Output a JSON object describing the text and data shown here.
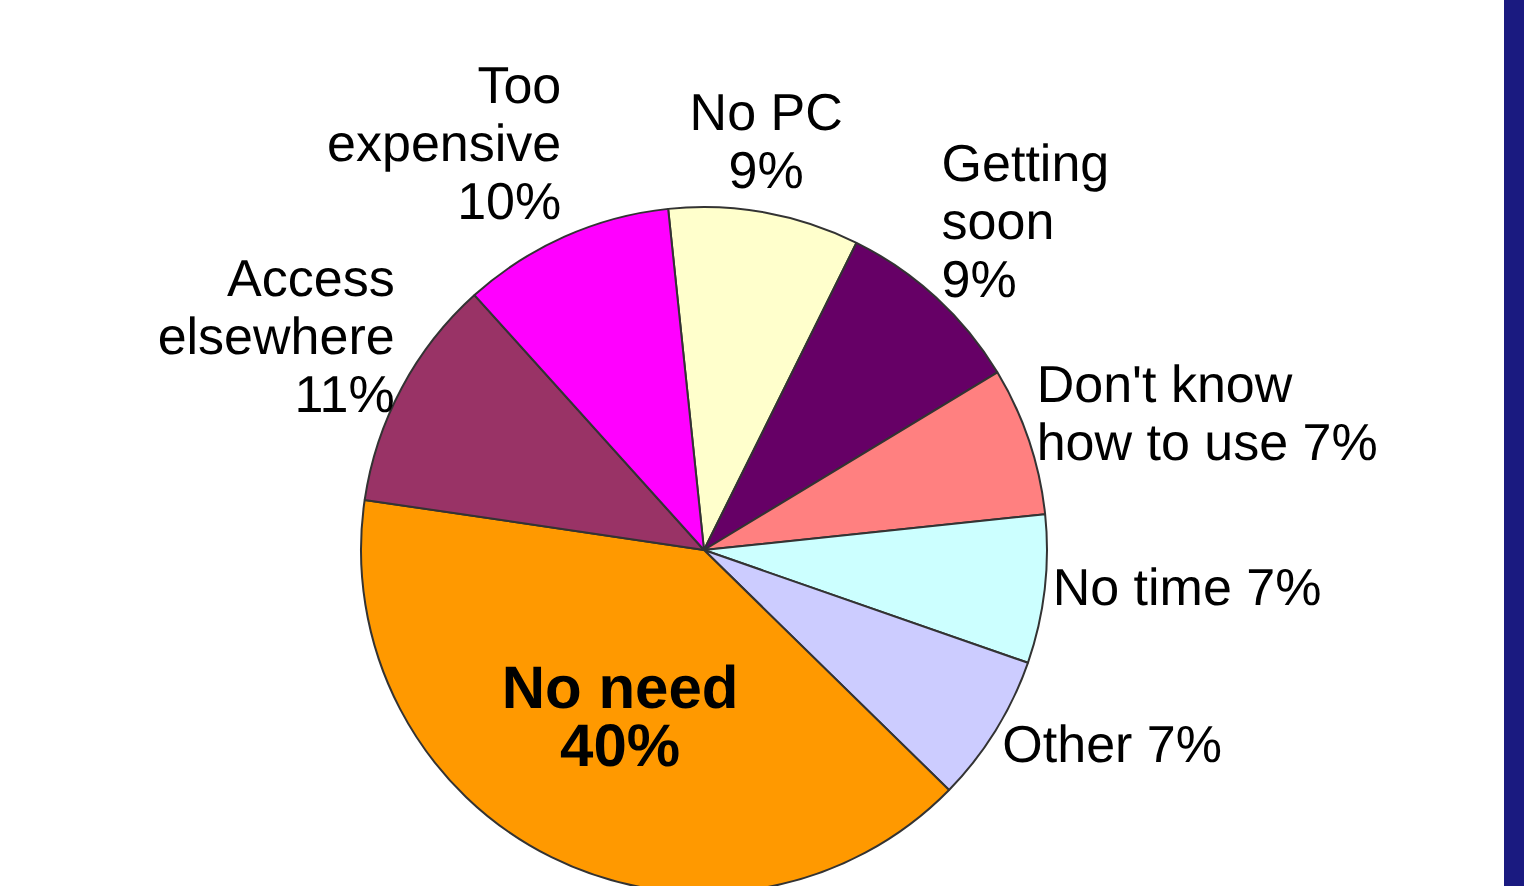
{
  "chart_data": {
    "type": "pie",
    "categories": [
      "No PC",
      "Getting soon",
      "Don't know how to use",
      "No time",
      "Other",
      "No need",
      "Access elsewhere",
      "Too expensive"
    ],
    "values": [
      9,
      9,
      7,
      7,
      7,
      40,
      11,
      10
    ],
    "colors": [
      "#ffffcc",
      "#660066",
      "#ff8080",
      "#ccffff",
      "#ccccff",
      "#ff9900",
      "#993366",
      "#ff00ff"
    ],
    "value_labels": [
      "9%",
      "9%",
      "7%",
      "7%",
      "7%",
      "40%",
      "11%",
      "10%"
    ],
    "legend": false
  }
}
